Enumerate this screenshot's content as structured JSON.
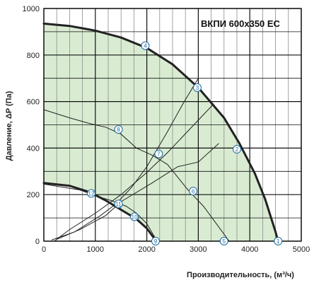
{
  "chart_data": {
    "type": "line",
    "title": "ВКПИ 600x350 ЕС",
    "xlabel": "Производительность, (м³/ч)",
    "ylabel": "Давление, ΔP (Па)",
    "xlim": [
      0,
      5000
    ],
    "ylim": [
      0,
      1000
    ],
    "x_ticks": [
      "0",
      "1000",
      "2000",
      "3000",
      "4000",
      "5000"
    ],
    "y_ticks": [
      "0",
      "200",
      "400",
      "600",
      "800",
      "1000"
    ],
    "grid": true,
    "colors": {
      "fill": "#d9ecd2",
      "curve": "#222222",
      "grid_minor": "#8c8c8c",
      "marker": "#1a6aa0"
    },
    "fan_curves": [
      {
        "name": "max",
        "points": [
          [
            0,
            935
          ],
          [
            500,
            925
          ],
          [
            1000,
            905
          ],
          [
            1500,
            875
          ],
          [
            2000,
            830
          ],
          [
            2500,
            760
          ],
          [
            3000,
            660
          ],
          [
            3500,
            530
          ],
          [
            3800,
            420
          ],
          [
            4100,
            290
          ],
          [
            4300,
            180
          ],
          [
            4500,
            40
          ],
          [
            4550,
            0
          ]
        ]
      },
      {
        "name": "min",
        "points": [
          [
            0,
            250
          ],
          [
            500,
            238
          ],
          [
            900,
            210
          ],
          [
            1200,
            175
          ],
          [
            1500,
            135
          ],
          [
            1800,
            95
          ],
          [
            2000,
            55
          ],
          [
            2150,
            10
          ],
          [
            2200,
            0
          ]
        ]
      }
    ],
    "system_curves": [
      {
        "name": "curve-1",
        "points": [
          [
            200,
            0
          ],
          [
            500,
            50
          ],
          [
            1000,
            120
          ],
          [
            1500,
            200
          ],
          [
            2000,
            295
          ],
          [
            2400,
            380
          ],
          [
            2700,
            450
          ],
          [
            3000,
            520
          ],
          [
            3300,
            590
          ]
        ]
      },
      {
        "name": "curve-2",
        "points": [
          [
            150,
            5
          ],
          [
            600,
            40
          ],
          [
            1100,
            110
          ],
          [
            1400,
            160
          ],
          [
            1700,
            230
          ],
          [
            2000,
            320
          ],
          [
            2400,
            470
          ],
          [
            2700,
            590
          ],
          [
            3000,
            700
          ]
        ]
      },
      {
        "name": "curve-3",
        "points": [
          [
            250,
            8
          ],
          [
            700,
            50
          ],
          [
            1200,
            110
          ],
          [
            1500,
            170
          ],
          [
            2100,
            250
          ],
          [
            2600,
            320
          ],
          [
            3000,
            340
          ],
          [
            3400,
            420
          ]
        ]
      }
    ],
    "resistance_curves": [
      {
        "name": "r-1",
        "points": [
          [
            0,
            565
          ],
          [
            500,
            530
          ],
          [
            900,
            505
          ],
          [
            1200,
            490
          ],
          [
            1500,
            460
          ],
          [
            1800,
            400
          ],
          [
            2100,
            370
          ],
          [
            2400,
            330
          ],
          [
            2800,
            220
          ],
          [
            3100,
            150
          ],
          [
            3500,
            30
          ],
          [
            3600,
            0
          ]
        ]
      },
      {
        "name": "r-2",
        "points": [
          [
            0,
            245
          ],
          [
            700,
            220
          ],
          [
            1000,
            195
          ],
          [
            1300,
            175
          ],
          [
            1600,
            150
          ],
          [
            1800,
            120
          ],
          [
            2000,
            75
          ],
          [
            2200,
            0
          ]
        ]
      }
    ],
    "markers": [
      {
        "label": "1",
        "x": 4550,
        "y": 0
      },
      {
        "label": "2",
        "x": 3750,
        "y": 395
      },
      {
        "label": "3",
        "x": 2980,
        "y": 660
      },
      {
        "label": "4",
        "x": 1970,
        "y": 840
      },
      {
        "label": "5",
        "x": 3500,
        "y": 0
      },
      {
        "label": "6",
        "x": 2900,
        "y": 215
      },
      {
        "label": "7",
        "x": 2230,
        "y": 375
      },
      {
        "label": "8",
        "x": 1450,
        "y": 480
      },
      {
        "label": "9",
        "x": 2170,
        "y": 0
      },
      {
        "label": "10",
        "x": 1760,
        "y": 105
      },
      {
        "label": "11",
        "x": 1450,
        "y": 160
      },
      {
        "label": "12",
        "x": 920,
        "y": 205
      }
    ]
  }
}
